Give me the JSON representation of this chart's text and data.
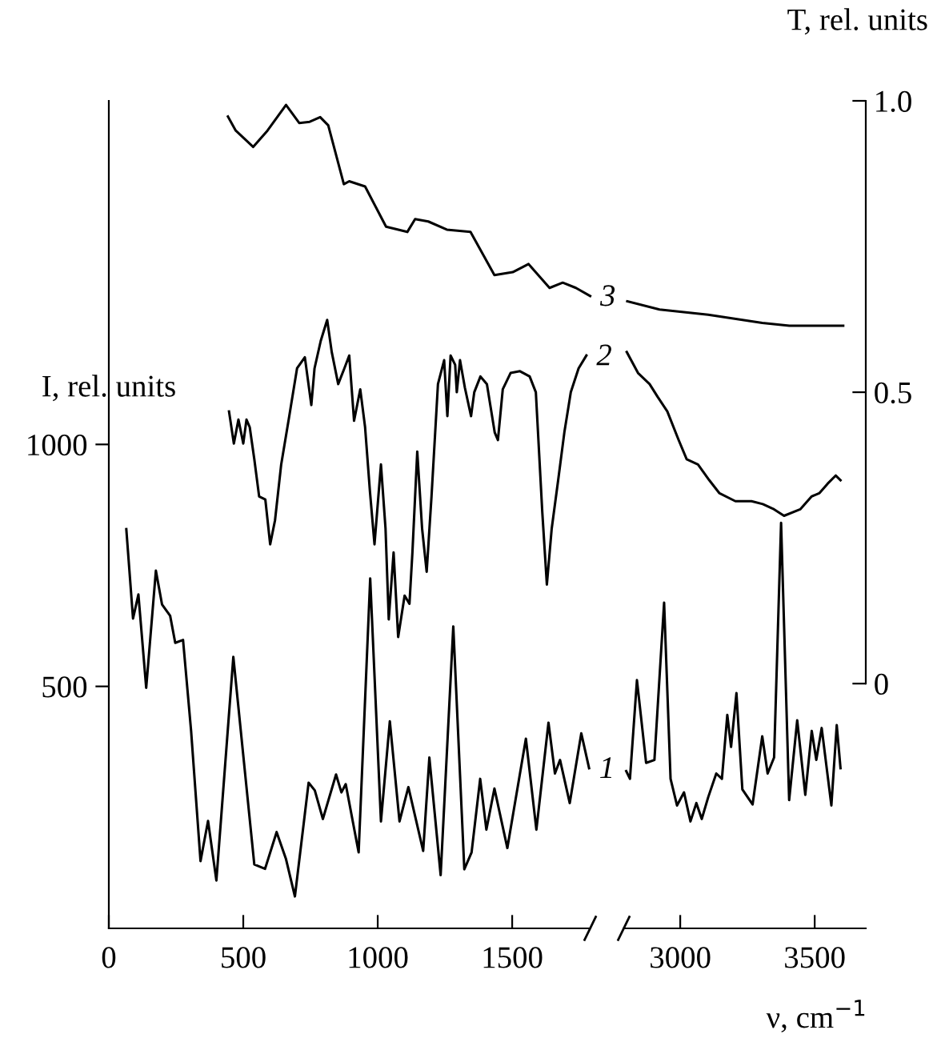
{
  "chart_data": [
    {
      "type": "line",
      "ylabel": "I, rel. units",
      "xlim": [
        0,
        1790
      ],
      "xticks": [
        0,
        500,
        1000,
        1500
      ],
      "ylim": [
        0,
        1710
      ],
      "yticks": [
        500,
        1000
      ],
      "y2lim": [
        -0.42,
        1
      ],
      "grid": false,
      "legend": false,
      "marker": "none",
      "line_style": "solid",
      "series": [
        {
          "name": "1",
          "color": "#000000",
          "x": [
            65,
            90,
            110,
            139,
            175,
            198,
            228,
            247,
            276,
            306,
            341,
            369,
            400,
            463,
            541,
            581,
            624,
            659,
            692,
            743,
            766,
            796,
            845,
            865,
            881,
            929,
            972,
            1012,
            1045,
            1081,
            1114,
            1169,
            1192,
            1234,
            1281,
            1322,
            1349,
            1381,
            1404,
            1434,
            1482,
            1551,
            1590,
            1635,
            1659,
            1678,
            1714,
            1757,
            1786
          ],
          "values": [
            825,
            640,
            690,
            497,
            739,
            669,
            646,
            590,
            596,
            408,
            139,
            222,
            99,
            561,
            132,
            123,
            199,
            143,
            66,
            301,
            285,
            226,
            318,
            281,
            298,
            157,
            723,
            221,
            428,
            221,
            292,
            160,
            353,
            110,
            624,
            122,
            157,
            309,
            204,
            289,
            166,
            392,
            204,
            425,
            320,
            348,
            259,
            403,
            331
          ]
        },
        {
          "name": "2",
          "color": "#000000",
          "axis": "y2",
          "x": [
            447,
            465,
            482,
            500,
            512,
            524,
            541,
            559,
            582,
            600,
            618,
            641,
            671,
            700,
            729,
            753,
            765,
            788,
            812,
            829,
            853,
            876,
            894,
            912,
            935,
            953,
            971,
            988,
            1012,
            1029,
            1041,
            1059,
            1076,
            1100,
            1118,
            1129,
            1147,
            1165,
            1182,
            1200,
            1224,
            1247,
            1259,
            1271,
            1288,
            1294,
            1306,
            1324,
            1347,
            1359,
            1382,
            1406,
            1435,
            1447,
            1465,
            1494,
            1529,
            1565,
            1588,
            1612,
            1629,
            1647,
            1671,
            1694,
            1718,
            1747,
            1776
          ],
          "values": [
            0.467,
            0.412,
            0.453,
            0.412,
            0.453,
            0.44,
            0.385,
            0.321,
            0.316,
            0.239,
            0.28,
            0.376,
            0.459,
            0.541,
            0.56,
            0.478,
            0.541,
            0.588,
            0.624,
            0.569,
            0.514,
            0.541,
            0.563,
            0.451,
            0.505,
            0.44,
            0.33,
            0.239,
            0.376,
            0.266,
            0.11,
            0.225,
            0.08,
            0.151,
            0.137,
            0.225,
            0.398,
            0.266,
            0.192,
            0.321,
            0.514,
            0.555,
            0.459,
            0.563,
            0.547,
            0.5,
            0.555,
            0.508,
            0.459,
            0.5,
            0.527,
            0.514,
            0.431,
            0.418,
            0.505,
            0.533,
            0.536,
            0.527,
            0.5,
            0.294,
            0.17,
            0.266,
            0.349,
            0.431,
            0.5,
            0.541,
            0.563
          ]
        },
        {
          "name": "3",
          "color": "#000000",
          "axis": "y2",
          "x": [
            443,
            472,
            537,
            590,
            659,
            708,
            747,
            786,
            816,
            874,
            894,
            953,
            1031,
            1110,
            1139,
            1188,
            1257,
            1345,
            1434,
            1502,
            1561,
            1639,
            1688,
            1737,
            1790
          ],
          "values": [
            0.973,
            0.949,
            0.921,
            0.949,
            0.993,
            0.962,
            0.964,
            0.972,
            0.958,
            0.857,
            0.862,
            0.853,
            0.784,
            0.775,
            0.797,
            0.793,
            0.779,
            0.775,
            0.701,
            0.706,
            0.72,
            0.679,
            0.688,
            0.679,
            0.665
          ]
        }
      ]
    },
    {
      "type": "line",
      "xlabel": "ν, cm$^{−1}$",
      "y2label": "T, rel. units",
      "xlim": [
        2790,
        3690
      ],
      "xticks": [
        3000,
        3500
      ],
      "ylim": [
        0,
        1710
      ],
      "y2lim": [
        -0.42,
        1
      ],
      "y2ticks": [
        0,
        0.5,
        {
          "value": 1,
          "label": "1.0"
        }
      ],
      "grid": false,
      "legend": false,
      "marker": "none",
      "line_style": "solid",
      "series": [
        {
          "color": "#000000",
          "x": [
            2799,
            2813,
            2839,
            2873,
            2904,
            2940,
            2964,
            2988,
            3014,
            3038,
            3060,
            3080,
            3104,
            3134,
            3155,
            3175,
            3189,
            3209,
            3231,
            3269,
            3305,
            3325,
            3349,
            3375,
            3405,
            3435,
            3465,
            3489,
            3506,
            3526,
            3562,
            3582,
            3596
          ],
          "values": [
            325,
            309,
            513,
            342,
            348,
            673,
            309,
            254,
            281,
            221,
            259,
            226,
            271,
            320,
            309,
            441,
            375,
            486,
            287,
            256,
            397,
            320,
            353,
            838,
            265,
            430,
            276,
            408,
            348,
            414,
            254,
            420,
            331
          ]
        },
        {
          "color": "#000000",
          "axis": "y2",
          "x": [
            2801,
            2843,
            2886,
            2916,
            2952,
            2994,
            3024,
            3066,
            3108,
            3145,
            3205,
            3265,
            3307,
            3349,
            3386,
            3446,
            3488,
            3518,
            3548,
            3578,
            3596
          ],
          "values": [
            0.569,
            0.533,
            0.514,
            0.492,
            0.467,
            0.418,
            0.385,
            0.376,
            0.349,
            0.327,
            0.313,
            0.313,
            0.308,
            0.299,
            0.288,
            0.299,
            0.321,
            0.327,
            0.343,
            0.357,
            0.349
          ]
        },
        {
          "color": "#000000",
          "axis": "y2",
          "x": [
            2803,
            2923,
            3104,
            3305,
            3406,
            3606
          ],
          "values": [
            0.656,
            0.642,
            0.633,
            0.619,
            0.614,
            0.614
          ]
        }
      ]
    }
  ]
}
